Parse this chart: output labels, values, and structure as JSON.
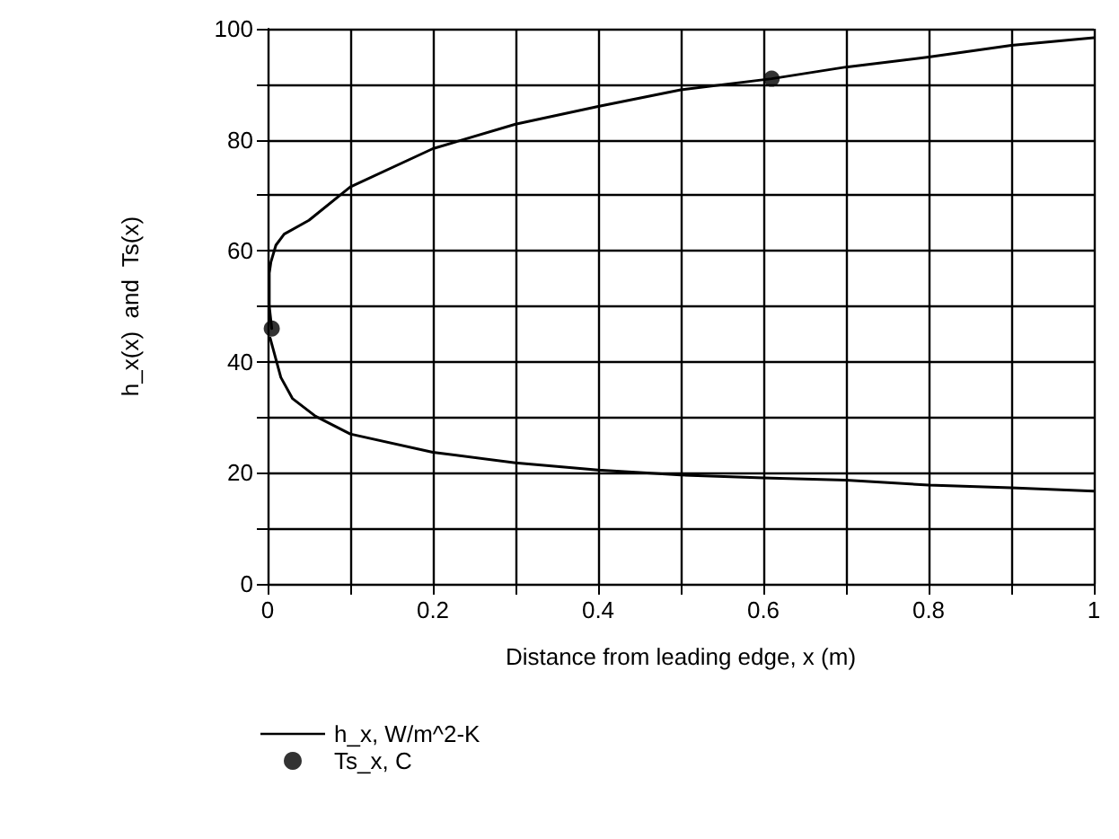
{
  "chart_data": {
    "type": "line",
    "xlabel": "Distance from leading edge, x (m)",
    "ylabel": "h_x(x)  and  Ts(x)",
    "xlim": [
      0,
      1
    ],
    "ylim": [
      0,
      100
    ],
    "xticks": [
      0,
      {
        "value": 0.1,
        "label": null
      },
      0.2,
      {
        "value": 0.3,
        "label": null
      },
      0.4,
      {
        "value": 0.5,
        "label": null
      },
      0.6,
      {
        "value": 0.7,
        "label": null
      },
      0.8,
      {
        "value": 0.9,
        "label": null
      },
      1
    ],
    "yticks": [
      0,
      {
        "value": 10,
        "label": null
      },
      20,
      {
        "value": 30,
        "label": null
      },
      40,
      {
        "value": 50,
        "label": null
      },
      60,
      {
        "value": 70,
        "label": null
      },
      80,
      {
        "value": 90,
        "label": null
      },
      100
    ],
    "grid": true,
    "legend": "bottom left",
    "line_style": "solid",
    "series": [
      {
        "name": "h_x, W/m^2-K",
        "color": "#000000",
        "marker": "none",
        "x": [
          0.003,
          0.016,
          0.03,
          0.058,
          0.1,
          0.2,
          0.3,
          0.4,
          0.5,
          0.6,
          0.7,
          0.8,
          0.9,
          1
        ],
        "values": [
          44.3,
          37.2,
          33.4,
          30.2,
          27,
          23.7,
          21.8,
          20.5,
          19.6,
          19.1,
          18.7,
          17.8,
          17.3,
          16.7
        ]
      },
      {
        "color": "#000000",
        "marker": "none",
        "x": [
          0.005,
          0.002,
          0.002,
          0.004,
          0.01,
          0.02,
          0.05,
          0.1,
          0.2,
          0.3,
          0.4,
          0.5,
          0.61,
          0.7,
          0.8,
          0.9,
          1
        ],
        "values": [
          46,
          50,
          56,
          58,
          61,
          63,
          65.5,
          71.5,
          78.4,
          82.8,
          86,
          89,
          91,
          93.1,
          94.9,
          97,
          98.4
        ]
      },
      {
        "name": "Ts_x, C",
        "type": "scatter",
        "color": "#000000",
        "marker": "circle",
        "x": [
          0.005,
          0.61
        ],
        "values": [
          46,
          91
        ]
      }
    ]
  }
}
